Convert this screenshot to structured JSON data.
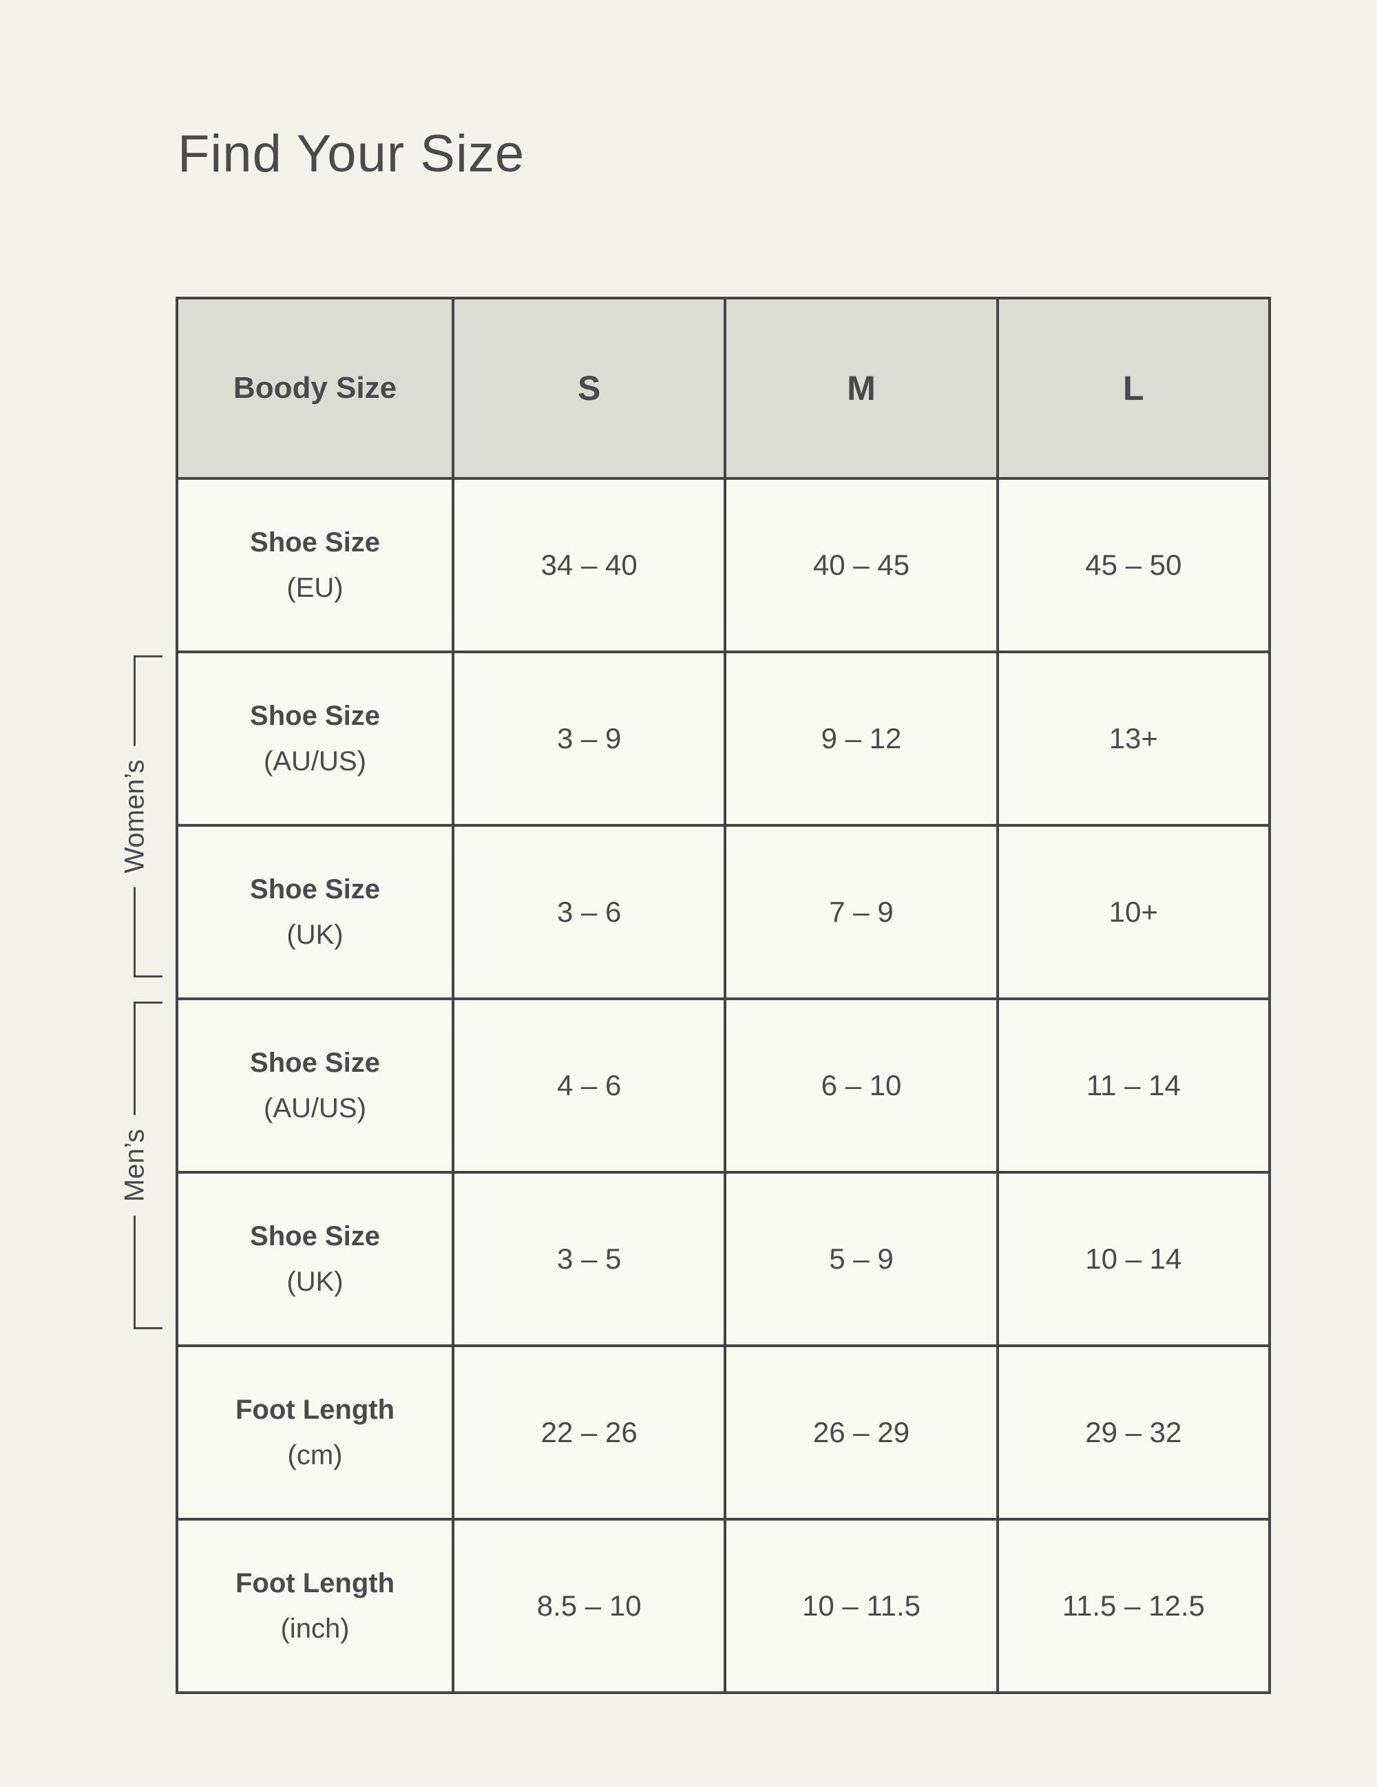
{
  "title": "Find Your Size",
  "colors": {
    "page_bg": "#f3f3ec",
    "cell_bg": "#f9f9f4",
    "header_bg": "#dbdcd3",
    "border": "#454547",
    "text": "#4a4a4c"
  },
  "chart_data": {
    "type": "table",
    "title": "Find Your Size",
    "header": {
      "corner": "Boody Size",
      "columns": [
        "S",
        "M",
        "L"
      ]
    },
    "row_groups": [
      {
        "label": "Women’s",
        "row_indexes": [
          1,
          2
        ]
      },
      {
        "label": "Men’s",
        "row_indexes": [
          3,
          4
        ]
      }
    ],
    "rows": [
      {
        "label": "Shoe Size",
        "unit": "(EU)",
        "values": [
          "34 – 40",
          "40 – 45",
          "45 – 50"
        ]
      },
      {
        "label": "Shoe Size",
        "unit": "(AU/US)",
        "values": [
          "3 – 9",
          "9 – 12",
          "13+"
        ]
      },
      {
        "label": "Shoe Size",
        "unit": "(UK)",
        "values": [
          "3 – 6",
          "7 – 9",
          "10+"
        ]
      },
      {
        "label": "Shoe Size",
        "unit": "(AU/US)",
        "values": [
          "4 – 6",
          "6 – 10",
          "11 – 14"
        ]
      },
      {
        "label": "Shoe Size",
        "unit": "(UK)",
        "values": [
          "3 – 5",
          "5 – 9",
          "10 – 14"
        ]
      },
      {
        "label": "Foot Length",
        "unit": "(cm)",
        "values": [
          "22 – 26",
          "26 – 29",
          "29 – 32"
        ]
      },
      {
        "label": "Foot Length",
        "unit": "(inch)",
        "values": [
          "8.5 – 10",
          "10 – 11.5",
          "11.5 – 12.5"
        ]
      }
    ]
  }
}
